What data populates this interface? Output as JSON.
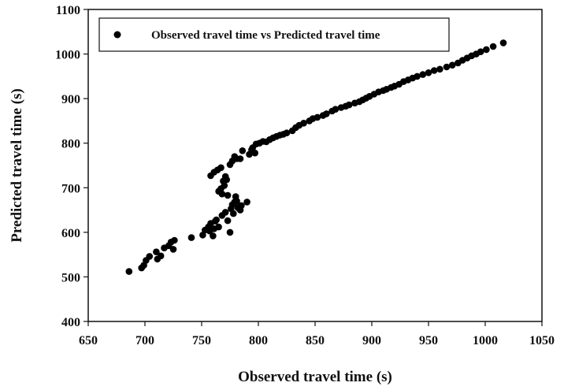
{
  "chart_data": {
    "type": "scatter",
    "xlabel": "Observed travel time (s)",
    "ylabel": "Predicted travel time (s)",
    "xlim": [
      650,
      1050
    ],
    "ylim": [
      400,
      1100
    ],
    "xticks": [
      650,
      700,
      750,
      800,
      850,
      900,
      950,
      1000,
      1050
    ],
    "yticks": [
      400,
      500,
      600,
      700,
      800,
      900,
      1000,
      1100
    ],
    "x_tick_labels": [
      "650",
      "700",
      "750",
      "800",
      "850",
      "900",
      "950",
      "1000",
      "1050"
    ],
    "y_tick_labels": [
      "400",
      "500",
      "600",
      "700",
      "800",
      "900",
      "1000",
      "1100"
    ],
    "grid": false,
    "legend_position": "top-left",
    "series": [
      {
        "name": "Observed travel time vs Predicted travel time",
        "color": "#000000",
        "marker": "circle",
        "points": [
          [
            686,
            512
          ],
          [
            697,
            520
          ],
          [
            699,
            526
          ],
          [
            701,
            537
          ],
          [
            704,
            546
          ],
          [
            710,
            556
          ],
          [
            711,
            540
          ],
          [
            714,
            547
          ],
          [
            717,
            565
          ],
          [
            721,
            570
          ],
          [
            723,
            578
          ],
          [
            725,
            562
          ],
          [
            726,
            582
          ],
          [
            741,
            588
          ],
          [
            751,
            594
          ],
          [
            753,
            605
          ],
          [
            756,
            612
          ],
          [
            757,
            603
          ],
          [
            758,
            620
          ],
          [
            760,
            592
          ],
          [
            761,
            608
          ],
          [
            762,
            625
          ],
          [
            763,
            628
          ],
          [
            765,
            612
          ],
          [
            768,
            638
          ],
          [
            771,
            645
          ],
          [
            773,
            626
          ],
          [
            775,
            600
          ],
          [
            776,
            653
          ],
          [
            777,
            662
          ],
          [
            778,
            642
          ],
          [
            779,
            668
          ],
          [
            780,
            680
          ],
          [
            781,
            670
          ],
          [
            782,
            655
          ],
          [
            784,
            650
          ],
          [
            785,
            660
          ],
          [
            790,
            668
          ],
          [
            758,
            727
          ],
          [
            761,
            735
          ],
          [
            764,
            740
          ],
          [
            765,
            692
          ],
          [
            767,
            698
          ],
          [
            767,
            745
          ],
          [
            768,
            686
          ],
          [
            769,
            715
          ],
          [
            770,
            705
          ],
          [
            771,
            725
          ],
          [
            772,
            718
          ],
          [
            773,
            683
          ],
          [
            775,
            752
          ],
          [
            777,
            760
          ],
          [
            779,
            770
          ],
          [
            781,
            765
          ],
          [
            784,
            765
          ],
          [
            786,
            783
          ],
          [
            792,
            775
          ],
          [
            794,
            785
          ],
          [
            795,
            790
          ],
          [
            797,
            778
          ],
          [
            798,
            798
          ],
          [
            801,
            800
          ],
          [
            804,
            804
          ],
          [
            807,
            803
          ],
          [
            810,
            808
          ],
          [
            813,
            812
          ],
          [
            816,
            815
          ],
          [
            819,
            818
          ],
          [
            822,
            820
          ],
          [
            825,
            823
          ],
          [
            830,
            828
          ],
          [
            833,
            835
          ],
          [
            836,
            840
          ],
          [
            840,
            845
          ],
          [
            845,
            850
          ],
          [
            848,
            855
          ],
          [
            852,
            858
          ],
          [
            857,
            862
          ],
          [
            860,
            866
          ],
          [
            865,
            872
          ],
          [
            868,
            876
          ],
          [
            873,
            880
          ],
          [
            877,
            883
          ],
          [
            880,
            886
          ],
          [
            885,
            890
          ],
          [
            889,
            893
          ],
          [
            892,
            897
          ],
          [
            895,
            901
          ],
          [
            898,
            905
          ],
          [
            902,
            910
          ],
          [
            906,
            915
          ],
          [
            910,
            918
          ],
          [
            913,
            921
          ],
          [
            917,
            925
          ],
          [
            920,
            928
          ],
          [
            924,
            932
          ],
          [
            928,
            938
          ],
          [
            932,
            942
          ],
          [
            936,
            946
          ],
          [
            940,
            950
          ],
          [
            945,
            954
          ],
          [
            950,
            958
          ],
          [
            955,
            963
          ],
          [
            960,
            966
          ],
          [
            966,
            971
          ],
          [
            971,
            975
          ],
          [
            976,
            980
          ],
          [
            980,
            986
          ],
          [
            984,
            991
          ],
          [
            988,
            996
          ],
          [
            992,
            1000
          ],
          [
            996,
            1005
          ],
          [
            1001,
            1010
          ],
          [
            1007,
            1017
          ],
          [
            1016,
            1025
          ]
        ]
      }
    ]
  }
}
